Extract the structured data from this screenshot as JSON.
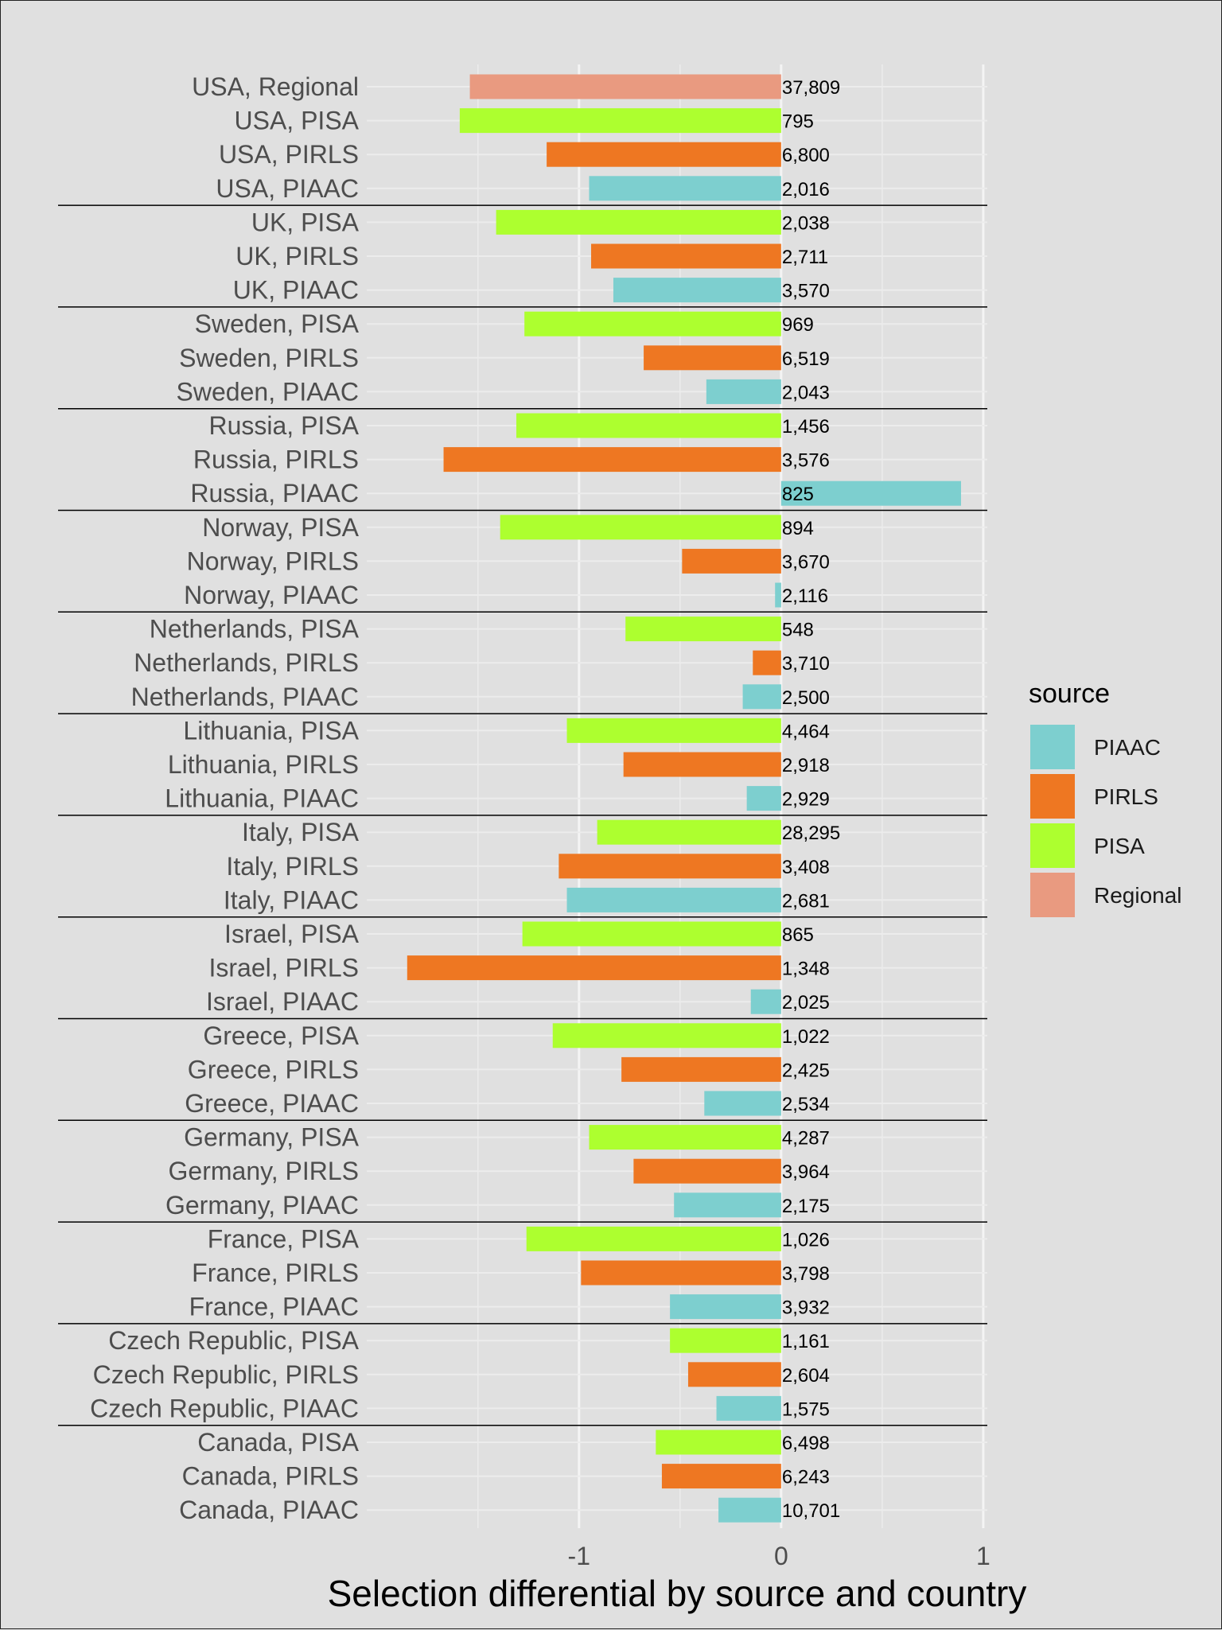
{
  "chart_data": {
    "type": "bar",
    "orientation": "horizontal",
    "xlabel": "Selection differential by source and country",
    "xlim": [
      -2.05,
      1.02
    ],
    "xticks": [
      -1,
      0,
      1
    ],
    "xtick_labels": [
      "-1",
      "0",
      "1"
    ],
    "grid": true,
    "legend": {
      "title": "source",
      "position": "right",
      "entries": [
        "PIAAC",
        "PIRLS",
        "PISA",
        "Regional"
      ]
    },
    "colors": {
      "PIAAC": "#7dcfcf",
      "PIRLS": "#ee7722",
      "PISA": "#adff2f",
      "Regional": "#e99a80"
    },
    "bar_label_note": "sample size printed right of zero",
    "bars": [
      {
        "label": "USA, Regional",
        "source": "Regional",
        "value": -1.54,
        "n": "37,809"
      },
      {
        "label": "USA, PISA",
        "source": "PISA",
        "value": -1.59,
        "n": "795"
      },
      {
        "label": "USA, PIRLS",
        "source": "PIRLS",
        "value": -1.16,
        "n": "6,800"
      },
      {
        "label": "USA, PIAAC",
        "source": "PIAAC",
        "value": -0.95,
        "n": "2,016"
      },
      {
        "label": "UK, PISA",
        "source": "PISA",
        "value": -1.41,
        "n": "2,038"
      },
      {
        "label": "UK, PIRLS",
        "source": "PIRLS",
        "value": -0.94,
        "n": "2,711"
      },
      {
        "label": "UK, PIAAC",
        "source": "PIAAC",
        "value": -0.83,
        "n": "3,570"
      },
      {
        "label": "Sweden, PISA",
        "source": "PISA",
        "value": -1.27,
        "n": "969"
      },
      {
        "label": "Sweden, PIRLS",
        "source": "PIRLS",
        "value": -0.68,
        "n": "6,519"
      },
      {
        "label": "Sweden, PIAAC",
        "source": "PIAAC",
        "value": -0.37,
        "n": "2,043"
      },
      {
        "label": "Russia, PISA",
        "source": "PISA",
        "value": -1.31,
        "n": "1,456"
      },
      {
        "label": "Russia, PIRLS",
        "source": "PIRLS",
        "value": -1.67,
        "n": "3,576"
      },
      {
        "label": "Russia, PIAAC",
        "source": "PIAAC",
        "value": 0.89,
        "n": "825"
      },
      {
        "label": "Norway, PISA",
        "source": "PISA",
        "value": -1.39,
        "n": "894"
      },
      {
        "label": "Norway, PIRLS",
        "source": "PIRLS",
        "value": -0.49,
        "n": "3,670"
      },
      {
        "label": "Norway, PIAAC",
        "source": "PIAAC",
        "value": -0.03,
        "n": "2,116"
      },
      {
        "label": "Netherlands, PISA",
        "source": "PISA",
        "value": -0.77,
        "n": "548"
      },
      {
        "label": "Netherlands, PIRLS",
        "source": "PIRLS",
        "value": -0.14,
        "n": "3,710"
      },
      {
        "label": "Netherlands, PIAAC",
        "source": "PIAAC",
        "value": -0.19,
        "n": "2,500"
      },
      {
        "label": "Lithuania, PISA",
        "source": "PISA",
        "value": -1.06,
        "n": "4,464"
      },
      {
        "label": "Lithuania, PIRLS",
        "source": "PIRLS",
        "value": -0.78,
        "n": "2,918"
      },
      {
        "label": "Lithuania, PIAAC",
        "source": "PIAAC",
        "value": -0.17,
        "n": "2,929"
      },
      {
        "label": "Italy, PISA",
        "source": "PISA",
        "value": -0.91,
        "n": "28,295"
      },
      {
        "label": "Italy, PIRLS",
        "source": "PIRLS",
        "value": -1.1,
        "n": "3,408"
      },
      {
        "label": "Italy, PIAAC",
        "source": "PIAAC",
        "value": -1.06,
        "n": "2,681"
      },
      {
        "label": "Israel, PISA",
        "source": "PISA",
        "value": -1.28,
        "n": "865"
      },
      {
        "label": "Israel, PIRLS",
        "source": "PIRLS",
        "value": -1.85,
        "n": "1,348"
      },
      {
        "label": "Israel, PIAAC",
        "source": "PIAAC",
        "value": -0.15,
        "n": "2,025"
      },
      {
        "label": "Greece, PISA",
        "source": "PISA",
        "value": -1.13,
        "n": "1,022"
      },
      {
        "label": "Greece, PIRLS",
        "source": "PIRLS",
        "value": -0.79,
        "n": "2,425"
      },
      {
        "label": "Greece, PIAAC",
        "source": "PIAAC",
        "value": -0.38,
        "n": "2,534"
      },
      {
        "label": "Germany, PISA",
        "source": "PISA",
        "value": -0.95,
        "n": "4,287"
      },
      {
        "label": "Germany, PIRLS",
        "source": "PIRLS",
        "value": -0.73,
        "n": "3,964"
      },
      {
        "label": "Germany, PIAAC",
        "source": "PIAAC",
        "value": -0.53,
        "n": "2,175"
      },
      {
        "label": "France, PISA",
        "source": "PISA",
        "value": -1.26,
        "n": "1,026"
      },
      {
        "label": "France, PIRLS",
        "source": "PIRLS",
        "value": -0.99,
        "n": "3,798"
      },
      {
        "label": "France, PIAAC",
        "source": "PIAAC",
        "value": -0.55,
        "n": "3,932"
      },
      {
        "label": "Czech Republic, PISA",
        "source": "PISA",
        "value": -0.55,
        "n": "1,161"
      },
      {
        "label": "Czech Republic, PIRLS",
        "source": "PIRLS",
        "value": -0.46,
        "n": "2,604"
      },
      {
        "label": "Czech Republic, PIAAC",
        "source": "PIAAC",
        "value": -0.32,
        "n": "1,575"
      },
      {
        "label": "Canada, PISA",
        "source": "PISA",
        "value": -0.62,
        "n": "6,498"
      },
      {
        "label": "Canada, PIRLS",
        "source": "PIRLS",
        "value": -0.59,
        "n": "6,243"
      },
      {
        "label": "Canada, PIAAC",
        "source": "PIAAC",
        "value": -0.31,
        "n": "10,701"
      }
    ],
    "group_separators_after": [
      3,
      6,
      9,
      12,
      15,
      18,
      21,
      24,
      27,
      30,
      33,
      36,
      39
    ]
  }
}
